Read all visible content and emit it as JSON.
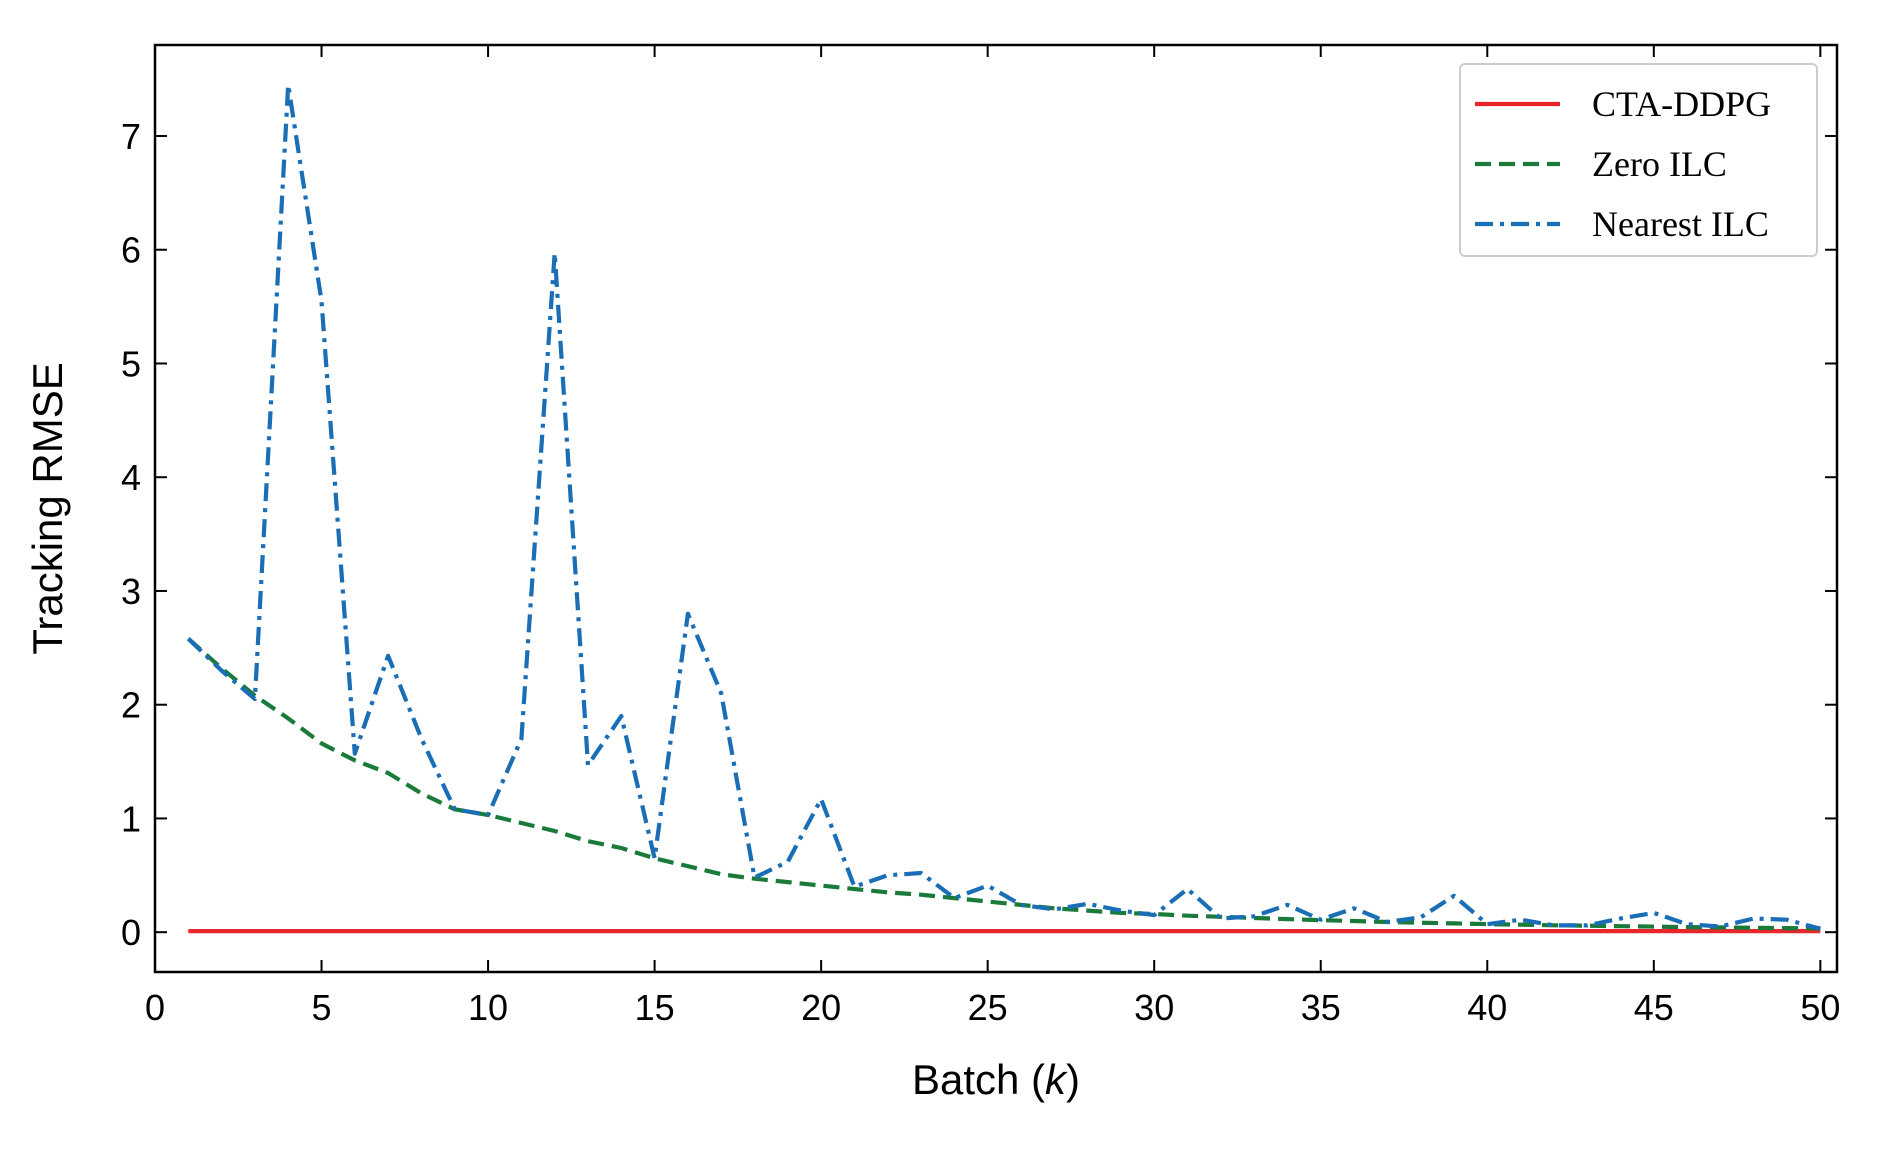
{
  "chart_data": {
    "type": "line",
    "xlabel_prefix": "Batch (",
    "xlabel_var": "k",
    "xlabel_suffix": ")",
    "ylabel": "Tracking RMSE",
    "xlim": [
      0,
      50.5
    ],
    "ylim": [
      -0.35,
      7.8
    ],
    "xticks": [
      0,
      5,
      10,
      15,
      20,
      25,
      30,
      35,
      40,
      45,
      50
    ],
    "yticks": [
      0,
      1,
      2,
      3,
      4,
      5,
      6,
      7
    ],
    "grid": false,
    "legend_position": "top-right",
    "x": [
      1,
      2,
      3,
      4,
      5,
      6,
      7,
      8,
      9,
      10,
      11,
      12,
      13,
      14,
      15,
      16,
      17,
      18,
      19,
      20,
      21,
      22,
      23,
      24,
      25,
      26,
      27,
      28,
      29,
      30,
      31,
      32,
      33,
      34,
      35,
      36,
      37,
      38,
      39,
      40,
      41,
      42,
      43,
      44,
      45,
      46,
      47,
      48,
      49,
      50
    ],
    "series": [
      {
        "name": "CTA-DDPG",
        "color": "#e8262b",
        "dash": "solid",
        "values": [
          0.01,
          0.01,
          0.01,
          0.01,
          0.01,
          0.01,
          0.01,
          0.01,
          0.01,
          0.01,
          0.01,
          0.01,
          0.01,
          0.01,
          0.01,
          0.01,
          0.01,
          0.01,
          0.01,
          0.01,
          0.01,
          0.01,
          0.01,
          0.01,
          0.01,
          0.01,
          0.01,
          0.01,
          0.01,
          0.01,
          0.01,
          0.01,
          0.01,
          0.01,
          0.01,
          0.01,
          0.01,
          0.01,
          0.01,
          0.01,
          0.01,
          0.01,
          0.01,
          0.01,
          0.01,
          0.01,
          0.01,
          0.01,
          0.01,
          0.01
        ]
      },
      {
        "name": "Zero ILC",
        "color": "#1a7a3a",
        "dash": "dashed",
        "values": [
          2.58,
          2.32,
          2.08,
          1.88,
          1.66,
          1.51,
          1.4,
          1.22,
          1.08,
          1.03,
          0.96,
          0.89,
          0.8,
          0.74,
          0.65,
          0.58,
          0.51,
          0.47,
          0.44,
          0.41,
          0.38,
          0.35,
          0.33,
          0.3,
          0.27,
          0.24,
          0.21,
          0.19,
          0.17,
          0.16,
          0.145,
          0.135,
          0.125,
          0.115,
          0.105,
          0.098,
          0.09,
          0.083,
          0.077,
          0.071,
          0.066,
          0.061,
          0.057,
          0.053,
          0.049,
          0.045,
          0.042,
          0.039,
          0.036,
          0.033
        ]
      },
      {
        "name": "Nearest ILC",
        "color": "#1a6eb5",
        "dash": "dashdot",
        "values": [
          2.58,
          2.3,
          2.05,
          7.45,
          5.55,
          1.57,
          2.43,
          1.7,
          1.08,
          1.03,
          1.7,
          5.97,
          1.47,
          1.9,
          0.65,
          2.8,
          2.1,
          0.48,
          0.62,
          1.17,
          0.4,
          0.5,
          0.52,
          0.3,
          0.41,
          0.24,
          0.2,
          0.25,
          0.19,
          0.15,
          0.38,
          0.12,
          0.14,
          0.24,
          0.11,
          0.21,
          0.09,
          0.13,
          0.32,
          0.07,
          0.11,
          0.06,
          0.06,
          0.12,
          0.17,
          0.07,
          0.05,
          0.12,
          0.11,
          0.03
        ]
      }
    ]
  }
}
